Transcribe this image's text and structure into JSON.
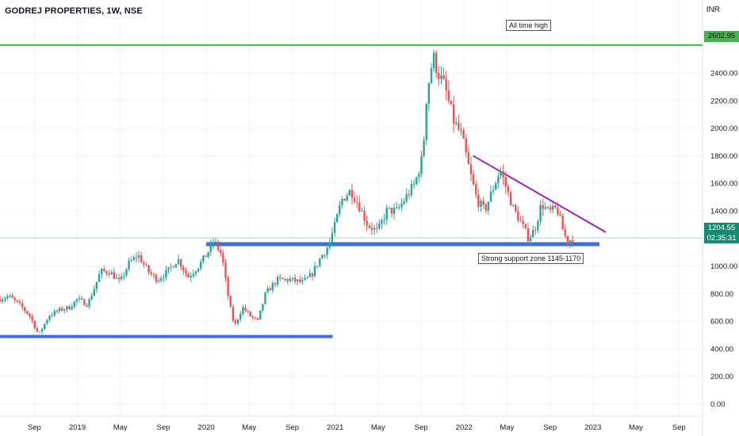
{
  "header": {
    "title": "GODREJ PROPERTIES, 1W, NSE",
    "currency": "INR"
  },
  "annotations": {
    "all_time_high": "All time high",
    "support_zone": "Strong support zone 1145-1170"
  },
  "price_tags": {
    "ath": "2602.95",
    "last_price": "1204.55",
    "countdown": "02:35:31"
  },
  "colors": {
    "up": "#26a69a",
    "down": "#ef5350",
    "support_line": "#3d6fd6",
    "ath_line": "#4caf50",
    "trend_line": "#9c27b0",
    "grid": "#f0f3fa",
    "axis_text": "#131722",
    "last_price_line": "#26a69a"
  },
  "chart_data": {
    "type": "candlestick",
    "title": "GODREJ PROPERTIES, 1W, NSE",
    "currency": "INR",
    "y_ticks": [
      0,
      200,
      400,
      600,
      800,
      1000,
      1200,
      1400,
      1600,
      1800,
      2000,
      2200,
      2400
    ],
    "y_tick_labels": [
      "0.00",
      "200.00",
      "400.00",
      "600.00",
      "800.00",
      "1000.00",
      "1200.00",
      "1400.00",
      "1600.00",
      "1800.00",
      "2000.00",
      "2200.00",
      "2400.00"
    ],
    "x_ticks": [
      {
        "label": "Sep",
        "t": 2018.667
      },
      {
        "label": "2019",
        "t": 2019.0
      },
      {
        "label": "May",
        "t": 2019.333
      },
      {
        "label": "Sep",
        "t": 2019.667
      },
      {
        "label": "2020",
        "t": 2020.0
      },
      {
        "label": "May",
        "t": 2020.333
      },
      {
        "label": "Sep",
        "t": 2020.667
      },
      {
        "label": "2021",
        "t": 2021.0
      },
      {
        "label": "May",
        "t": 2021.333
      },
      {
        "label": "Sep",
        "t": 2021.667
      },
      {
        "label": "2022",
        "t": 2022.0
      },
      {
        "label": "May",
        "t": 2022.333
      },
      {
        "label": "Sep",
        "t": 2022.667
      },
      {
        "label": "2023",
        "t": 2023.0
      },
      {
        "label": "May",
        "t": 2023.333
      },
      {
        "label": "Sep",
        "t": 2023.667
      }
    ],
    "x_range": [
      2018.4,
      2023.85
    ],
    "y_range": [
      -90,
      2930
    ],
    "grid": true,
    "last_price": 1204.55,
    "ath": 2602.95,
    "price_path": [
      [
        2018.4,
        760
      ],
      [
        2018.47,
        780
      ],
      [
        2018.55,
        720
      ],
      [
        2018.63,
        640
      ],
      [
        2018.7,
        500
      ],
      [
        2018.78,
        640
      ],
      [
        2018.86,
        680
      ],
      [
        2018.94,
        700
      ],
      [
        2019.0,
        760
      ],
      [
        2019.08,
        720
      ],
      [
        2019.14,
        860
      ],
      [
        2019.18,
        960
      ],
      [
        2019.25,
        960
      ],
      [
        2019.33,
        880
      ],
      [
        2019.4,
        1020
      ],
      [
        2019.47,
        1080
      ],
      [
        2019.55,
        960
      ],
      [
        2019.62,
        900
      ],
      [
        2019.7,
        960
      ],
      [
        2019.78,
        1050
      ],
      [
        2019.86,
        920
      ],
      [
        2019.94,
        1000
      ],
      [
        2020.0,
        1080
      ],
      [
        2020.06,
        1180
      ],
      [
        2020.12,
        1080
      ],
      [
        2020.18,
        720
      ],
      [
        2020.22,
        560
      ],
      [
        2020.28,
        700
      ],
      [
        2020.35,
        630
      ],
      [
        2020.4,
        600
      ],
      [
        2020.46,
        800
      ],
      [
        2020.55,
        900
      ],
      [
        2020.65,
        900
      ],
      [
        2020.75,
        880
      ],
      [
        2020.82,
        940
      ],
      [
        2020.88,
        1050
      ],
      [
        2020.95,
        1150
      ],
      [
        2021.0,
        1300
      ],
      [
        2021.05,
        1480
      ],
      [
        2021.12,
        1550
      ],
      [
        2021.18,
        1450
      ],
      [
        2021.25,
        1300
      ],
      [
        2021.33,
        1250
      ],
      [
        2021.4,
        1400
      ],
      [
        2021.48,
        1400
      ],
      [
        2021.55,
        1500
      ],
      [
        2021.62,
        1600
      ],
      [
        2021.68,
        1800
      ],
      [
        2021.71,
        2250
      ],
      [
        2021.76,
        2520
      ],
      [
        2021.8,
        2400
      ],
      [
        2021.85,
        2300
      ],
      [
        2021.92,
        2050
      ],
      [
        2021.98,
        1950
      ],
      [
        2022.04,
        1700
      ],
      [
        2022.1,
        1480
      ],
      [
        2022.16,
        1400
      ],
      [
        2022.22,
        1550
      ],
      [
        2022.28,
        1700
      ],
      [
        2022.33,
        1560
      ],
      [
        2022.38,
        1420
      ],
      [
        2022.45,
        1300
      ],
      [
        2022.5,
        1200
      ],
      [
        2022.55,
        1270
      ],
      [
        2022.6,
        1450
      ],
      [
        2022.66,
        1390
      ],
      [
        2022.72,
        1420
      ],
      [
        2022.77,
        1250
      ],
      [
        2022.8,
        1180
      ],
      [
        2022.86,
        1205
      ]
    ],
    "lines": [
      {
        "name": "all-time-high",
        "t1": 2018.4,
        "p1": 2602.95,
        "t2": 2023.85,
        "p2": 2602.95
      },
      {
        "name": "support-zone",
        "t1": 2020.0,
        "p1": 1158,
        "t2": 2023.05,
        "p2": 1158
      },
      {
        "name": "lower-support",
        "t1": 2018.4,
        "p1": 488,
        "t2": 2020.98,
        "p2": 488
      },
      {
        "name": "descending-trendline",
        "t1": 2022.07,
        "p1": 1800,
        "t2": 2023.1,
        "p2": 1245
      }
    ]
  }
}
